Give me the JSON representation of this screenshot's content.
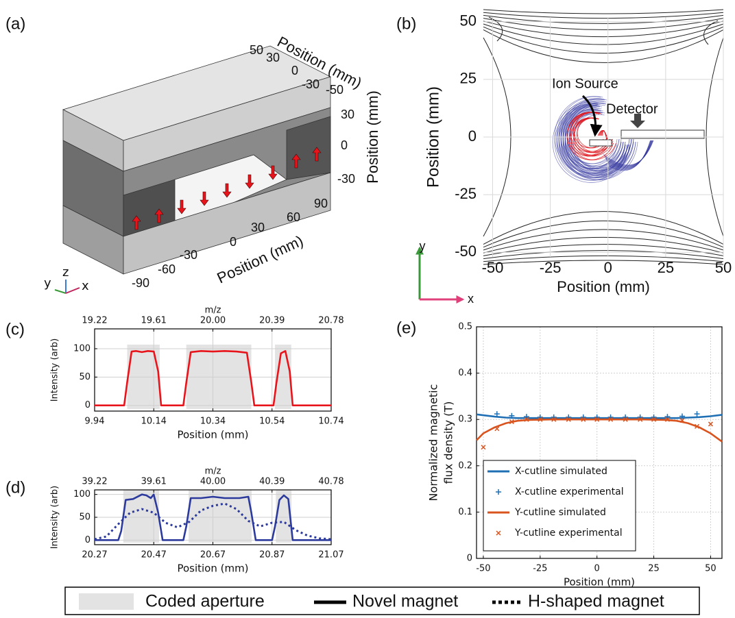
{
  "panel_labels": [
    "(a)",
    "(b)",
    "(c)",
    "(d)",
    "(e)"
  ],
  "panel_a": {
    "x_label": "Position (mm)",
    "y_label": "Position (mm)",
    "z_label": "Position (mm)",
    "x_ticks": [
      "-90",
      "-60",
      "-30",
      "0",
      "30",
      "60",
      "90"
    ],
    "y_ticks": [
      "50",
      "30",
      "0",
      "-30",
      "-50"
    ],
    "z_ticks": [
      "30",
      "0",
      "-30"
    ],
    "triad": [
      "y",
      "z",
      "x"
    ]
  },
  "legend": {
    "items": [
      "Coded aperture",
      "Novel magnet",
      "H-shaped magnet"
    ]
  },
  "chart_data": [
    {
      "type": "field",
      "xlabel": "Position (mm)",
      "ylabel": "Position (mm)",
      "xlim": [
        -54,
        50
      ],
      "ylim": [
        -52,
        52
      ],
      "xticks": [
        -50,
        -25,
        0,
        25,
        50
      ],
      "yticks": [
        -50,
        -25,
        0,
        25,
        50
      ],
      "grid": true,
      "annotations": [
        "Ion Source",
        "Detector"
      ],
      "axis_arrows": [
        "x",
        "y"
      ]
    },
    {
      "type": "line",
      "xlabel": "Position (mm)",
      "ylabel": "Intensity (arb)",
      "x2label": "m/z",
      "xlim": [
        9.94,
        10.74
      ],
      "xticks": [
        9.94,
        10.14,
        10.34,
        10.54,
        10.74
      ],
      "x2lim": [
        19.22,
        20.78
      ],
      "x2ticks": [
        19.22,
        19.61,
        {
          "value": 20,
          "label": "20.00"
        },
        20.39,
        20.78
      ],
      "ylim": [
        -10,
        135
      ],
      "yticks": [
        0,
        50,
        100
      ],
      "grid": true,
      "span_color": "#e3e3e3",
      "spans": [
        [
          10.05,
          10.16
        ],
        [
          10.25,
          10.47
        ],
        [
          10.55,
          10.605
        ]
      ],
      "series": [
        {
          "color": "#e8141b",
          "style": "solid",
          "x": [
            9.94,
            10.04,
            10.05,
            10.065,
            10.08,
            10.1,
            10.12,
            10.14,
            10.155,
            10.165,
            10.24,
            10.25,
            10.265,
            10.3,
            10.34,
            10.38,
            10.42,
            10.455,
            10.47,
            10.48,
            10.545,
            10.555,
            10.57,
            10.585,
            10.6,
            10.61,
            10.74
          ],
          "values": [
            0,
            0,
            40,
            95,
            96,
            94,
            96,
            95,
            60,
            0,
            0,
            40,
            94,
            96,
            95,
            96,
            95,
            93,
            40,
            0,
            0,
            40,
            92,
            96,
            60,
            0,
            0
          ]
        }
      ]
    },
    {
      "type": "line",
      "xlabel": "Position (mm)",
      "ylabel": "Intensity (arb)",
      "x2label": "m/z",
      "xlim": [
        20.27,
        21.07
      ],
      "xticks": [
        20.27,
        20.47,
        20.67,
        20.87,
        21.07
      ],
      "x2lim": [
        39.22,
        40.78
      ],
      "x2ticks": [
        39.22,
        39.61,
        {
          "value": 40,
          "label": "40.00"
        },
        40.39,
        40.78
      ],
      "ylim": [
        -10,
        110
      ],
      "yticks": [
        0,
        50,
        100
      ],
      "grid": true,
      "span_color": "#e3e3e3",
      "spans": [
        [
          20.367,
          20.488
        ],
        [
          20.588,
          20.801
        ],
        [
          20.883,
          20.936
        ]
      ],
      "series": [
        {
          "color": "#2b3a9c",
          "style": "solid",
          "x": [
            20.27,
            20.35,
            20.36,
            20.375,
            20.4,
            20.43,
            20.445,
            20.46,
            20.47,
            20.485,
            20.5,
            20.57,
            20.58,
            20.595,
            20.63,
            20.67,
            20.71,
            20.76,
            20.79,
            20.8,
            20.815,
            20.87,
            20.88,
            20.895,
            20.91,
            20.925,
            20.94,
            21.07
          ],
          "values": [
            0,
            0,
            20,
            88,
            90,
            100,
            98,
            92,
            100,
            60,
            0,
            0,
            30,
            92,
            92,
            95,
            92,
            92,
            95,
            60,
            0,
            0,
            30,
            88,
            98,
            90,
            0,
            0
          ]
        },
        {
          "color": "#2b3a9c",
          "style": "dotted",
          "x": [
            20.27,
            20.31,
            20.35,
            20.39,
            20.43,
            20.47,
            20.51,
            20.55,
            20.59,
            20.63,
            20.67,
            20.71,
            20.75,
            20.79,
            20.83,
            20.87,
            20.91,
            20.95,
            20.99,
            21.03,
            21.07
          ],
          "values": [
            2,
            8,
            35,
            60,
            68,
            60,
            38,
            28,
            40,
            65,
            75,
            80,
            68,
            42,
            30,
            38,
            40,
            22,
            10,
            4,
            2
          ]
        }
      ]
    },
    {
      "type": "line",
      "xlabel": "Position (mm)",
      "ylabel": [
        "Normalized magnetic",
        "flux density (T)"
      ],
      "xlim": [
        -53,
        55
      ],
      "xticks": [
        -50,
        -25,
        0,
        25,
        50
      ],
      "ylim": [
        0,
        0.5
      ],
      "yticks": [
        0,
        0.1,
        0.2,
        0.3,
        0.4,
        0.5
      ],
      "grid": true,
      "series": [
        {
          "name": "X-cutline simulated",
          "color": "#1f6fb4",
          "style": "solid",
          "x": [
            -53,
            -50,
            -45,
            -40,
            -35,
            -30,
            -20,
            -10,
            0,
            10,
            20,
            30,
            35,
            40,
            45,
            50,
            55
          ],
          "values": [
            0.311,
            0.309,
            0.306,
            0.304,
            0.303,
            0.303,
            0.303,
            0.303,
            0.303,
            0.303,
            0.303,
            0.303,
            0.303,
            0.304,
            0.305,
            0.307,
            0.31
          ]
        },
        {
          "name": "X-cutline experimental",
          "color": "#1f6fb4",
          "marker": "plus",
          "x": [
            -44,
            -37.5,
            -31,
            -25,
            -19,
            -12.5,
            -6,
            0,
            6,
            12.5,
            19,
            25,
            31,
            37.5,
            44
          ],
          "values": [
            0.312,
            0.308,
            0.306,
            0.305,
            0.305,
            0.305,
            0.305,
            0.305,
            0.305,
            0.305,
            0.305,
            0.305,
            0.306,
            0.307,
            0.312
          ]
        },
        {
          "name": "Y-cutline simulated",
          "color": "#d9531e",
          "style": "solid",
          "x": [
            -53,
            -50,
            -45,
            -40,
            -35,
            -30,
            -20,
            -10,
            0,
            10,
            20,
            30,
            35,
            40,
            45,
            50,
            55
          ],
          "values": [
            0.255,
            0.27,
            0.283,
            0.292,
            0.297,
            0.299,
            0.3,
            0.3,
            0.3,
            0.3,
            0.3,
            0.299,
            0.297,
            0.292,
            0.283,
            0.27,
            0.252
          ]
        },
        {
          "name": "Y-cutline experimental",
          "color": "#d9531e",
          "marker": "cross",
          "x": [
            -50,
            -44,
            -37.5,
            -31,
            -25,
            -19,
            -12.5,
            -6,
            0,
            6,
            12.5,
            19,
            25,
            31,
            37.5,
            44,
            50
          ],
          "values": [
            0.24,
            0.28,
            0.295,
            0.3,
            0.3,
            0.3,
            0.3,
            0.3,
            0.3,
            0.3,
            0.3,
            0.3,
            0.3,
            0.3,
            0.298,
            0.285,
            0.29
          ]
        }
      ]
    }
  ]
}
